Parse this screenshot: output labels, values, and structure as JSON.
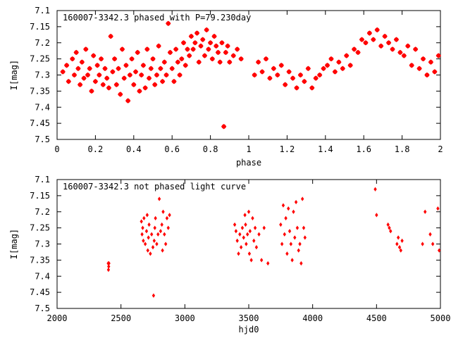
{
  "chart_data": [
    {
      "type": "scatter",
      "title": "160007-3342.3 phased with P=79.230day",
      "xlabel": "phase",
      "ylabel": "I[mag]",
      "xlim": [
        0,
        2
      ],
      "ylim": [
        7.5,
        7.1
      ],
      "y_inverted": true,
      "marker": "star",
      "color": "#ff0000",
      "x_ticks": [
        "0",
        "0.2",
        "0.4",
        "0.6",
        "0.8",
        "1",
        "1.2",
        "1.4",
        "1.6",
        "1.8",
        "2"
      ],
      "y_ticks": [
        "7.1",
        "7.15",
        "7.2",
        "7.25",
        "7.3",
        "7.35",
        "7.4",
        "7.45",
        "7.5"
      ],
      "series": [
        {
          "x": [
            0.03,
            0.05,
            0.06,
            0.08,
            0.09,
            0.1,
            0.11,
            0.12,
            0.13,
            0.14,
            0.15,
            0.16,
            0.17,
            0.18,
            0.19,
            0.2,
            0.21,
            0.22,
            0.23,
            0.24,
            0.25,
            0.26,
            0.27,
            0.28,
            0.29,
            0.3,
            0.31,
            0.32,
            0.33,
            0.34,
            0.35,
            0.36,
            0.37,
            0.38,
            0.39,
            0.4,
            0.41,
            0.42,
            0.43,
            0.44,
            0.45,
            0.46,
            0.47,
            0.48,
            0.49,
            0.5,
            0.51,
            0.52,
            0.53,
            0.54,
            0.55,
            0.56,
            0.57,
            0.58,
            0.59,
            0.6,
            0.61,
            0.62,
            0.63,
            0.64,
            0.65,
            0.66,
            0.67,
            0.68,
            0.69,
            0.7,
            0.71,
            0.72,
            0.73,
            0.74,
            0.75,
            0.76,
            0.77,
            0.78,
            0.79,
            0.8,
            0.81,
            0.82,
            0.83,
            0.84,
            0.85,
            0.86,
            0.87,
            0.88,
            0.89,
            0.9,
            0.92,
            0.94,
            0.96,
            1.03,
            1.05,
            1.07,
            1.09,
            1.11,
            1.13,
            1.15,
            1.17,
            1.19,
            1.21,
            1.23,
            1.25,
            1.27,
            1.29,
            1.31,
            1.33,
            1.35,
            1.37,
            1.39,
            1.41,
            1.43,
            1.45,
            1.47,
            1.49,
            1.51,
            1.53,
            1.55,
            1.57,
            1.59,
            1.61,
            1.63,
            1.65,
            1.67,
            1.69,
            1.71,
            1.73,
            1.75,
            1.77,
            1.79,
            1.81,
            1.83,
            1.85,
            1.87,
            1.89,
            1.91,
            1.93,
            1.95,
            1.97,
            1.99
          ],
          "y": [
            7.29,
            7.27,
            7.32,
            7.25,
            7.3,
            7.23,
            7.28,
            7.33,
            7.26,
            7.31,
            7.22,
            7.3,
            7.28,
            7.35,
            7.24,
            7.32,
            7.27,
            7.3,
            7.25,
            7.33,
            7.28,
            7.31,
            7.34,
            7.18,
            7.29,
            7.25,
            7.33,
            7.28,
            7.36,
            7.22,
            7.31,
            7.27,
            7.38,
            7.3,
            7.25,
            7.33,
            7.29,
            7.23,
            7.35,
            7.3,
            7.27,
            7.34,
            7.22,
            7.31,
            7.28,
            7.25,
            7.33,
            7.3,
            7.21,
            7.28,
            7.32,
            7.26,
            7.3,
            7.14,
            7.23,
            7.28,
            7.32,
            7.22,
            7.26,
            7.3,
            7.25,
            7.2,
            7.27,
            7.22,
            7.24,
            7.18,
            7.22,
            7.2,
            7.17,
            7.26,
            7.21,
            7.19,
            7.24,
            7.16,
            7.22,
            7.2,
            7.25,
            7.18,
            7.21,
            7.23,
            7.26,
            7.2,
            7.46,
            7.23,
            7.21,
            7.26,
            7.24,
            7.22,
            7.25,
            7.3,
            7.26,
            7.29,
            7.25,
            7.31,
            7.28,
            7.3,
            7.27,
            7.33,
            7.29,
            7.31,
            7.34,
            7.3,
            7.32,
            7.28,
            7.34,
            7.31,
            7.3,
            7.28,
            7.27,
            7.25,
            7.29,
            7.26,
            7.28,
            7.24,
            7.27,
            7.22,
            7.23,
            7.19,
            7.2,
            7.17,
            7.19,
            7.16,
            7.21,
            7.18,
            7.2,
            7.22,
            7.19,
            7.23,
            7.24,
            7.21,
            7.27,
            7.22,
            7.28,
            7.25,
            7.3,
            7.26,
            7.29,
            7.24
          ]
        }
      ]
    },
    {
      "type": "scatter",
      "title": "160007-3342.3 not phased light curve",
      "xlabel": "hjd0",
      "ylabel": "I[mag]",
      "xlim": [
        2000,
        5000
      ],
      "ylim": [
        7.5,
        7.1
      ],
      "y_inverted": true,
      "marker": "diamond",
      "color": "#ff0000",
      "x_ticks": [
        "2000",
        "2500",
        "3000",
        "3500",
        "4000",
        "4500",
        "5000"
      ],
      "y_ticks": [
        "7.1",
        "7.15",
        "7.2",
        "7.25",
        "7.3",
        "7.35",
        "7.4",
        "7.45",
        "7.5"
      ],
      "series": [
        {
          "x": [
            2400,
            2402,
            2404,
            2406,
            2660,
            2665,
            2670,
            2675,
            2680,
            2690,
            2700,
            2705,
            2710,
            2715,
            2720,
            2730,
            2740,
            2750,
            2755,
            2760,
            2765,
            2770,
            2780,
            2790,
            2800,
            2810,
            2820,
            2825,
            2830,
            2840,
            2850,
            2860,
            2870,
            2880,
            3390,
            3400,
            3410,
            3420,
            3430,
            3440,
            3450,
            3460,
            3470,
            3475,
            3480,
            3490,
            3500,
            3505,
            3510,
            3520,
            3530,
            3540,
            3550,
            3560,
            3580,
            3600,
            3620,
            3650,
            3750,
            3760,
            3770,
            3780,
            3790,
            3800,
            3810,
            3820,
            3830,
            3840,
            3850,
            3860,
            3870,
            3880,
            3890,
            3900,
            3910,
            3920,
            3930,
            3940,
            4490,
            4500,
            4590,
            4600,
            4610,
            4660,
            4670,
            4680,
            4690,
            4700,
            4860,
            4880,
            4920,
            4940,
            4980,
            4990
          ],
          "y": [
            7.36,
            7.38,
            7.37,
            7.36,
            7.23,
            7.27,
            7.25,
            7.29,
            7.22,
            7.3,
            7.26,
            7.21,
            7.32,
            7.28,
            7.24,
            7.33,
            7.27,
            7.31,
            7.46,
            7.29,
            7.25,
            7.22,
            7.3,
            7.27,
            7.16,
            7.26,
            7.24,
            7.32,
            7.2,
            7.27,
            7.3,
            7.22,
            7.25,
            7.21,
            7.24,
            7.26,
            7.29,
            7.33,
            7.27,
            7.31,
            7.25,
            7.28,
            7.21,
            7.24,
            7.3,
            7.27,
            7.2,
            7.33,
            7.26,
            7.35,
            7.22,
            7.29,
            7.25,
            7.31,
            7.27,
            7.35,
            7.25,
            7.36,
            7.24,
            7.3,
            7.18,
            7.27,
            7.22,
            7.33,
            7.19,
            7.26,
            7.3,
            7.35,
            7.2,
            7.28,
            7.17,
            7.25,
            7.32,
            7.3,
            7.36,
            7.16,
            7.25,
            7.28,
            7.13,
            7.21,
            7.24,
            7.25,
            7.26,
            7.3,
            7.28,
            7.31,
            7.32,
            7.29,
            7.3,
            7.2,
            7.27,
            7.3,
            7.19,
            7.32
          ]
        }
      ]
    }
  ]
}
